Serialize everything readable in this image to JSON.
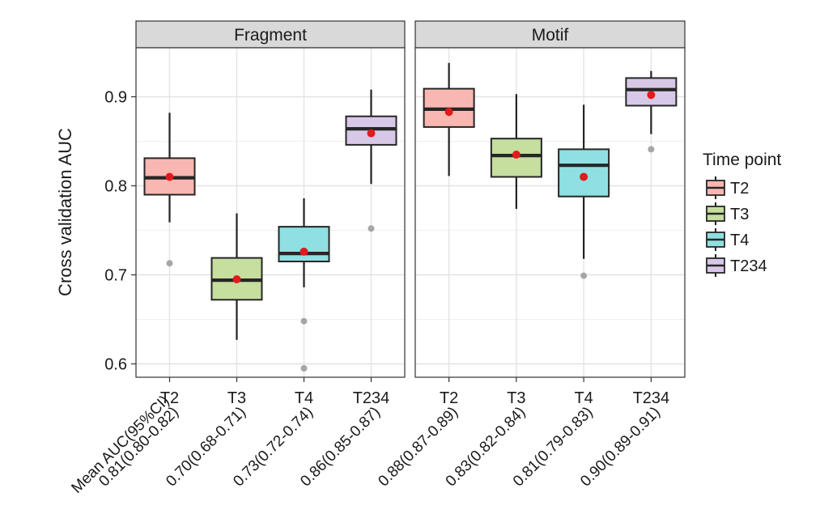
{
  "chart_data": {
    "type": "boxplot",
    "ylabel": "Cross validation AUC",
    "ylim": [
      0.585,
      0.955
    ],
    "yticks": [
      0.6,
      0.7,
      0.8,
      0.9
    ],
    "ytick_labels": [
      "0.6",
      "0.7",
      "0.8",
      "0.9"
    ],
    "categories": [
      "T2",
      "T3",
      "T4",
      "T234"
    ],
    "legend": {
      "title": "Time point",
      "placement": "right",
      "entries": [
        {
          "label": "T2",
          "color": "#F8B7B1"
        },
        {
          "label": "T3",
          "color": "#C6DE9E"
        },
        {
          "label": "T4",
          "color": "#8FE0E2"
        },
        {
          "label": "T234",
          "color": "#D8C8E8"
        }
      ]
    },
    "mean_marker_color": "#E31A1C",
    "outlier_color": "#A6A6A6",
    "auc_label_prefix": "Mean AUC(95%CI)",
    "panels": [
      {
        "title": "Fragment",
        "boxes": [
          {
            "category": "T2",
            "whisker_low": 0.759,
            "q1": 0.79,
            "median": 0.809,
            "q3": 0.831,
            "whisker_high": 0.882,
            "mean": 0.81,
            "outliers": [
              0.713
            ],
            "auc_label": "0.81(0.80-0.82)"
          },
          {
            "category": "T3",
            "whisker_low": 0.627,
            "q1": 0.672,
            "median": 0.694,
            "q3": 0.719,
            "whisker_high": 0.769,
            "mean": 0.695,
            "outliers": [],
            "auc_label": "0.70(0.68-0.71)"
          },
          {
            "category": "T4",
            "whisker_low": 0.686,
            "q1": 0.715,
            "median": 0.724,
            "q3": 0.754,
            "whisker_high": 0.786,
            "mean": 0.726,
            "outliers": [
              0.648,
              0.595
            ],
            "auc_label": "0.73(0.72-0.74)"
          },
          {
            "category": "T234",
            "whisker_low": 0.802,
            "q1": 0.846,
            "median": 0.864,
            "q3": 0.878,
            "whisker_high": 0.908,
            "mean": 0.859,
            "outliers": [
              0.752
            ],
            "auc_label": "0.86(0.85-0.87)"
          }
        ]
      },
      {
        "title": "Motif",
        "boxes": [
          {
            "category": "T2",
            "whisker_low": 0.811,
            "q1": 0.866,
            "median": 0.886,
            "q3": 0.909,
            "whisker_high": 0.938,
            "mean": 0.883,
            "outliers": [],
            "auc_label": "0.88(0.87-0.89)"
          },
          {
            "category": "T3",
            "whisker_low": 0.774,
            "q1": 0.81,
            "median": 0.834,
            "q3": 0.853,
            "whisker_high": 0.903,
            "mean": 0.835,
            "outliers": [],
            "auc_label": "0.83(0.82-0.84)"
          },
          {
            "category": "T4",
            "whisker_low": 0.718,
            "q1": 0.788,
            "median": 0.823,
            "q3": 0.841,
            "whisker_high": 0.891,
            "mean": 0.81,
            "outliers": [
              0.699
            ],
            "auc_label": "0.81(0.79-0.83)"
          },
          {
            "category": "T234",
            "whisker_low": 0.858,
            "q1": 0.89,
            "median": 0.908,
            "q3": 0.921,
            "whisker_high": 0.929,
            "mean": 0.902,
            "outliers": [
              0.841
            ],
            "auc_label": "0.90(0.89-0.91)"
          }
        ]
      }
    ]
  }
}
